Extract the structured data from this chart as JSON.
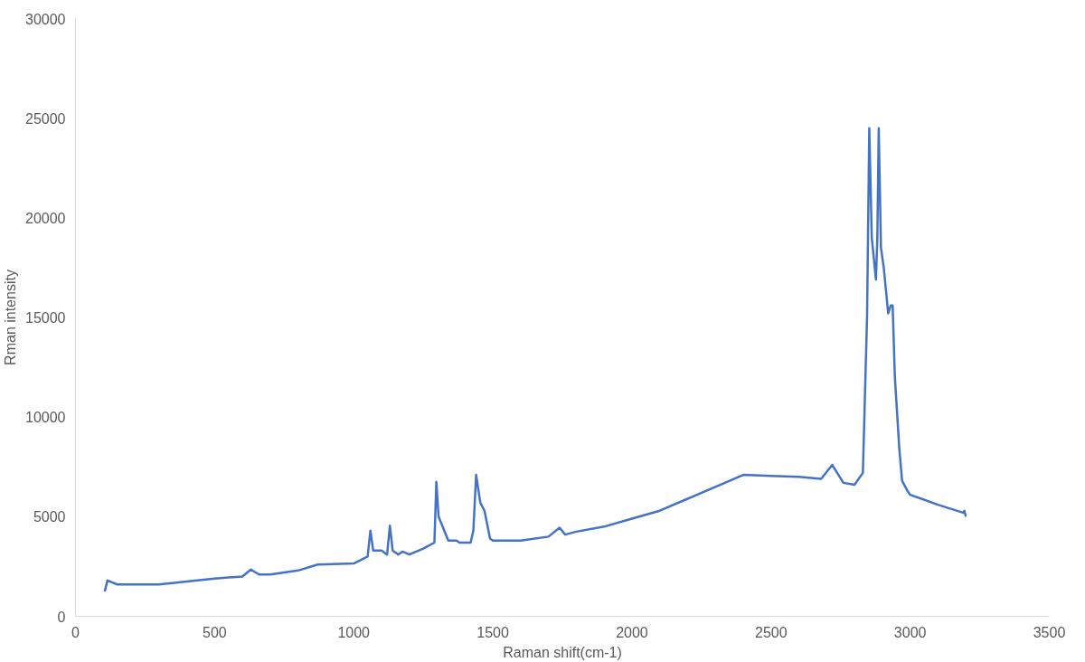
{
  "chart_data": {
    "type": "line",
    "xlabel": "Raman shift(cm-1)",
    "ylabel": "Rman intensity",
    "xlim": [
      0,
      3500
    ],
    "xticks": [
      0,
      500,
      1000,
      1500,
      2000,
      2500,
      3000,
      3500
    ],
    "ylim": [
      0,
      30000
    ],
    "yticks": [
      0,
      5000,
      10000,
      15000,
      20000,
      25000,
      30000
    ],
    "grid": false,
    "series": [
      {
        "color": "#4472c4",
        "x": [
          105,
          115,
          150,
          300,
          500,
          600,
          630,
          660,
          700,
          800,
          870,
          1000,
          1050,
          1060,
          1070,
          1100,
          1120,
          1130,
          1140,
          1160,
          1175,
          1200,
          1250,
          1290,
          1297,
          1305,
          1340,
          1370,
          1380,
          1420,
          1430,
          1440,
          1455,
          1470,
          1490,
          1500,
          1600,
          1700,
          1740,
          1760,
          1800,
          1900,
          2000,
          2100,
          2200,
          2300,
          2400,
          2500,
          2600,
          2680,
          2720,
          2760,
          2800,
          2830,
          2845,
          2853,
          2862,
          2877,
          2882,
          2887,
          2895,
          2905,
          2921,
          2930,
          2937,
          2945,
          2961,
          2971,
          2990,
          3000,
          3100,
          3190,
          3195,
          3200
        ],
        "values": [
          1250,
          1800,
          1600,
          1600,
          1900,
          2000,
          2350,
          2100,
          2100,
          2300,
          2600,
          2650,
          3000,
          4300,
          3300,
          3300,
          3100,
          4550,
          3300,
          3100,
          3250,
          3100,
          3400,
          3700,
          6750,
          5000,
          3800,
          3800,
          3700,
          3700,
          4300,
          7100,
          5700,
          5300,
          3900,
          3800,
          3800,
          4000,
          4450,
          4100,
          4250,
          4500,
          4900,
          5300,
          5900,
          6500,
          7100,
          7050,
          7000,
          6900,
          7600,
          6700,
          6600,
          7200,
          15000,
          24500,
          19000,
          16900,
          19000,
          24500,
          18500,
          17500,
          15200,
          15600,
          15600,
          12000,
          8400,
          6800,
          6300,
          6100,
          5600,
          5200,
          5300,
          5000
        ]
      }
    ]
  }
}
